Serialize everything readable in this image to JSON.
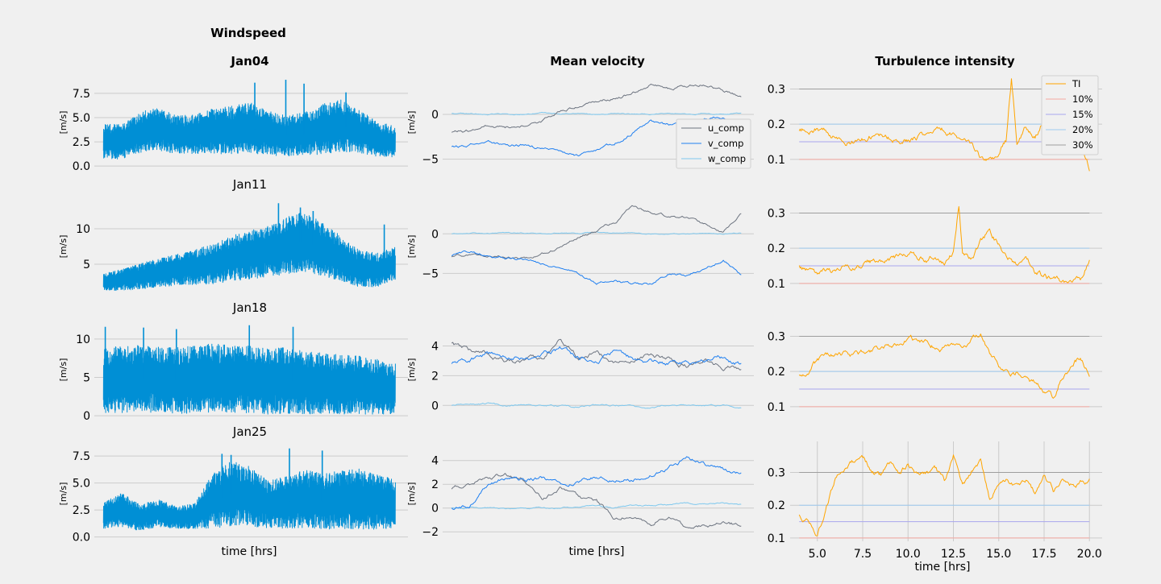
{
  "colors": {
    "windspeed": "#008fd5",
    "u_comp": "#6d7480",
    "v_comp": "#1f7ff0",
    "w_comp": "#7ec8ee",
    "TI": "#ffa500",
    "th10": "#f4a7a1",
    "th15": "#a8a6ee",
    "th20": "#9ecaf0",
    "th30": "#9e9e9e",
    "grid": "#cbcbcb",
    "background": "#f0f0f0"
  },
  "chart_data": {
    "suptitle": "Windspeed",
    "column_titles": [
      "Jan04",
      "Mean velocity",
      "Turbulence intensity"
    ],
    "row_titles": [
      "Jan04",
      "Jan11",
      "Jan18",
      "Jan25"
    ],
    "xlabel": "time [hrs]",
    "ylabel": "[m/s]",
    "xlim": [
      3.5,
      20.7
    ],
    "ti_xticks": [
      5.0,
      7.5,
      10.0,
      12.5,
      15.0,
      17.5,
      20.0
    ],
    "ti_xtick_labels": [
      "5.0",
      "7.5",
      "10.0",
      "12.5",
      "15.0",
      "17.5",
      "20.0"
    ],
    "legend_velocity": [
      "u_comp",
      "v_comp",
      "w_comp"
    ],
    "legend_ti": [
      "TI",
      "10%",
      "15%",
      "20%",
      "30%"
    ],
    "thresholds": [
      0.1,
      0.15,
      0.2,
      0.3
    ],
    "windspeed_panels": [
      {
        "type": "line",
        "title": "",
        "ylim": [
          -0.4,
          9.4
        ],
        "yticks": [
          0.0,
          2.5,
          5.0,
          7.5
        ],
        "ytick_labels": [
          "0.0",
          "2.5",
          "5.0",
          "7.5"
        ],
        "profile_x": [
          4,
          5,
          6,
          7,
          8,
          9,
          10,
          11,
          12,
          13,
          14,
          15,
          16,
          17,
          18,
          19,
          20
        ],
        "mean": [
          2.6,
          2.5,
          3.5,
          3.8,
          3.2,
          3.3,
          3.6,
          3.7,
          4.0,
          3.4,
          3.1,
          3.3,
          3.8,
          4.2,
          3.6,
          2.8,
          2.5
        ],
        "amp": [
          1.8,
          1.8,
          2.1,
          2.2,
          2.0,
          2.0,
          2.3,
          2.5,
          2.6,
          2.3,
          2.1,
          2.2,
          2.6,
          2.7,
          2.2,
          1.8,
          1.6
        ],
        "spikes": [
          [
            12.3,
            8.6
          ],
          [
            14.0,
            8.9
          ],
          [
            15.0,
            8.5
          ],
          [
            17.3,
            7.6
          ]
        ]
      },
      {
        "type": "line",
        "title": "Jan11",
        "ylim": [
          0.8,
          14.2
        ],
        "yticks": [
          5,
          10
        ],
        "ytick_labels": [
          "5",
          "10"
        ],
        "profile_x": [
          4,
          5,
          6,
          7,
          8,
          9,
          10,
          11,
          12,
          13,
          14,
          15,
          16,
          17,
          18,
          19,
          20
        ],
        "mean": [
          2.5,
          2.8,
          3.3,
          3.8,
          4.2,
          4.6,
          5.0,
          5.8,
          6.3,
          6.8,
          7.6,
          8.2,
          7.2,
          5.8,
          4.4,
          4.2,
          5.0
        ],
        "amp": [
          1.2,
          1.5,
          1.8,
          2.0,
          2.2,
          2.5,
          2.8,
          3.2,
          3.4,
          3.6,
          4.0,
          4.2,
          3.8,
          3.2,
          2.6,
          2.4,
          2.4
        ],
        "spikes": [
          [
            13.6,
            13.6
          ],
          [
            14.8,
            13.0
          ],
          [
            15.5,
            12.5
          ],
          [
            19.4,
            10.6
          ]
        ]
      },
      {
        "type": "line",
        "title": "Jan18",
        "ylim": [
          -0.2,
          12.2
        ],
        "yticks": [
          0,
          5,
          10
        ],
        "ytick_labels": [
          "0",
          "5",
          "10"
        ],
        "profile_x": [
          4,
          5,
          6,
          7,
          8,
          9,
          10,
          11,
          12,
          13,
          14,
          15,
          16,
          17,
          18,
          19,
          20
        ],
        "mean": [
          4.5,
          4.8,
          4.8,
          4.7,
          4.6,
          4.7,
          4.9,
          4.8,
          4.7,
          4.5,
          4.6,
          4.3,
          4.2,
          4.1,
          4.0,
          3.8,
          3.5
        ],
        "amp": [
          4.2,
          4.4,
          4.4,
          4.3,
          4.3,
          4.4,
          4.5,
          4.4,
          4.4,
          4.3,
          4.3,
          4.1,
          4.0,
          3.9,
          3.8,
          3.6,
          3.3
        ],
        "spikes": [
          [
            4.1,
            11.6
          ],
          [
            6.2,
            11.5
          ],
          [
            12.0,
            11.8
          ],
          [
            14.4,
            11.6
          ],
          [
            8.0,
            11.3
          ]
        ]
      },
      {
        "type": "line",
        "title": "Jan25",
        "ylim": [
          -0.4,
          8.4
        ],
        "yticks": [
          0.0,
          2.5,
          5.0,
          7.5
        ],
        "ytick_labels": [
          "0.0",
          "2.5",
          "5.0",
          "7.5"
        ],
        "profile_x": [
          4,
          5,
          6,
          7,
          8,
          9,
          10,
          11,
          12,
          13,
          14,
          15,
          16,
          17,
          18,
          19,
          20
        ],
        "mean": [
          2.0,
          2.5,
          1.8,
          2.2,
          1.8,
          1.9,
          3.4,
          4.0,
          3.8,
          3.0,
          3.2,
          3.5,
          3.3,
          3.4,
          3.5,
          3.3,
          3.0
        ],
        "amp": [
          1.2,
          1.6,
          1.2,
          1.3,
          1.0,
          1.2,
          2.6,
          3.0,
          2.8,
          2.2,
          2.4,
          2.7,
          2.6,
          2.7,
          2.8,
          2.6,
          2.3
        ],
        "spikes": [
          [
            10.5,
            7.7
          ],
          [
            11.0,
            7.6
          ],
          [
            14.2,
            8.2
          ],
          [
            16.0,
            8.0
          ]
        ]
      }
    ],
    "velocity_panels": [
      {
        "type": "line",
        "ylim": [
          -6.2,
          4.4
        ],
        "yticks": [
          -5,
          0
        ],
        "ytick_labels": [
          "−5",
          "0"
        ],
        "x": [
          4,
          5,
          6,
          7,
          8,
          9,
          10,
          11,
          12,
          13,
          14,
          15,
          16,
          17,
          18,
          19,
          20
        ],
        "u": [
          -2.0,
          -1.8,
          -1.2,
          -1.4,
          -1.2,
          -0.8,
          0.4,
          1.1,
          1.4,
          1.8,
          2.3,
          3.4,
          2.9,
          3.2,
          3.4,
          2.6,
          2.0
        ],
        "v": [
          -3.6,
          -3.5,
          -3.0,
          -3.6,
          -3.4,
          -3.8,
          -4.2,
          -4.6,
          -4.0,
          -3.2,
          -2.0,
          -0.7,
          -1.2,
          -1.0,
          -0.4,
          -0.2,
          -1.6
        ],
        "w": [
          0.1,
          0.1,
          0.0,
          0.1,
          0.0,
          0.1,
          0.0,
          0.1,
          0.0,
          0.1,
          0.0,
          0.0,
          0.1,
          0.0,
          0.1,
          0.0,
          0.1
        ]
      },
      {
        "type": "line",
        "ylim": [
          -7.6,
          4.4
        ],
        "yticks": [
          -5,
          0
        ],
        "ytick_labels": [
          "−5",
          "0"
        ],
        "x": [
          4,
          5,
          6,
          7,
          8,
          9,
          10,
          11,
          12,
          13,
          14,
          15,
          16,
          17,
          18,
          19,
          20
        ],
        "u": [
          -2.9,
          -2.7,
          -2.8,
          -3.0,
          -3.1,
          -2.5,
          -1.8,
          -0.4,
          0.4,
          1.4,
          3.4,
          2.6,
          2.2,
          2.0,
          1.2,
          0.3,
          2.4
        ],
        "v": [
          -2.8,
          -2.2,
          -2.8,
          -3.2,
          -3.2,
          -3.8,
          -4.2,
          -5.0,
          -6.2,
          -5.8,
          -6.4,
          -6.3,
          -5.0,
          -5.2,
          -4.4,
          -3.2,
          -5.2
        ],
        "w": [
          0.0,
          0.1,
          0.0,
          0.1,
          0.1,
          0.0,
          0.1,
          0.0,
          0.2,
          0.1,
          0.1,
          0.0,
          0.1,
          0.0,
          0.1,
          0.0,
          0.1
        ]
      },
      {
        "type": "line",
        "ylim": [
          -0.8,
          5.6
        ],
        "yticks": [
          0,
          2,
          4
        ],
        "ytick_labels": [
          "0",
          "2",
          "4"
        ],
        "x": [
          4,
          5,
          6,
          7,
          8,
          9,
          10,
          11,
          12,
          13,
          14,
          15,
          16,
          17,
          18,
          19,
          20
        ],
        "u": [
          4.2,
          3.6,
          3.5,
          3.0,
          2.8,
          3.2,
          4.5,
          3.2,
          3.6,
          2.8,
          3.0,
          3.4,
          3.2,
          2.6,
          3.0,
          2.6,
          2.6
        ],
        "v": [
          2.8,
          3.0,
          3.4,
          3.3,
          3.2,
          3.4,
          3.8,
          3.2,
          3.0,
          3.6,
          3.2,
          3.0,
          2.8,
          2.8,
          3.0,
          3.2,
          2.8
        ],
        "w": [
          0.0,
          0.0,
          0.1,
          -0.1,
          0.0,
          0.0,
          0.0,
          -0.1,
          0.0,
          0.0,
          0.0,
          -0.1,
          0.0,
          0.0,
          0.0,
          0.0,
          -0.1
        ]
      },
      {
        "type": "line",
        "ylim": [
          -2.8,
          5.2
        ],
        "yticks": [
          -2,
          0,
          2,
          4
        ],
        "ytick_labels": [
          "−2",
          "0",
          "2",
          "4"
        ],
        "x": [
          4,
          5,
          6,
          7,
          8,
          9,
          10,
          11,
          12,
          13,
          14,
          15,
          16,
          17,
          18,
          19,
          20
        ],
        "u": [
          1.6,
          2.0,
          2.6,
          2.8,
          2.4,
          0.8,
          1.8,
          1.0,
          0.5,
          -0.8,
          -0.6,
          -1.5,
          -0.5,
          -1.8,
          -1.6,
          -1.2,
          -1.5
        ],
        "v": [
          0.0,
          0.2,
          2.0,
          2.6,
          2.4,
          2.6,
          2.0,
          2.2,
          2.6,
          2.2,
          2.4,
          2.8,
          3.4,
          4.2,
          3.6,
          3.2,
          2.8
        ],
        "w": [
          0.0,
          0.0,
          0.0,
          -0.1,
          -0.1,
          0.0,
          0.0,
          0.1,
          0.2,
          0.0,
          0.2,
          0.2,
          0.3,
          0.4,
          0.3,
          0.4,
          0.3
        ]
      }
    ],
    "ti_panels": [
      {
        "type": "line",
        "ylim": [
          0.07,
          0.34
        ],
        "yticks": [
          0.1,
          0.2,
          0.3
        ],
        "ytick_labels": [
          "0.1",
          "0.2",
          "0.3"
        ],
        "x": [
          4.0,
          5.0,
          6.0,
          7.0,
          8.0,
          9.0,
          10.0,
          11.0,
          12.0,
          13.0,
          13.5,
          14.0,
          14.5,
          15.0,
          15.4,
          15.7,
          16.0,
          16.5,
          17.0,
          17.5,
          18.0,
          18.5,
          19.0,
          19.5,
          20.0
        ],
        "y": [
          0.18,
          0.19,
          0.16,
          0.15,
          0.17,
          0.16,
          0.16,
          0.17,
          0.18,
          0.16,
          0.13,
          0.1,
          0.09,
          0.12,
          0.15,
          0.33,
          0.14,
          0.19,
          0.17,
          0.21,
          0.26,
          0.18,
          0.21,
          0.14,
          0.08
        ]
      },
      {
        "type": "line",
        "ylim": [
          0.07,
          0.34
        ],
        "yticks": [
          0.1,
          0.2,
          0.3
        ],
        "ytick_labels": [
          "0.1",
          "0.2",
          "0.3"
        ],
        "x": [
          4.0,
          5.0,
          6.0,
          7.0,
          8.0,
          9.0,
          10.0,
          11.0,
          11.5,
          12.0,
          12.5,
          12.8,
          13.0,
          13.5,
          14.0,
          14.5,
          15.0,
          15.5,
          16.0,
          16.5,
          17.0,
          17.5,
          18.0,
          18.5,
          19.0,
          19.5,
          20.0
        ],
        "y": [
          0.15,
          0.13,
          0.14,
          0.15,
          0.16,
          0.17,
          0.19,
          0.17,
          0.18,
          0.15,
          0.19,
          0.32,
          0.18,
          0.16,
          0.22,
          0.25,
          0.21,
          0.17,
          0.15,
          0.16,
          0.13,
          0.12,
          0.11,
          0.1,
          0.09,
          0.1,
          0.17
        ]
      },
      {
        "type": "line",
        "ylim": [
          0.07,
          0.34
        ],
        "yticks": [
          0.1,
          0.2,
          0.3
        ],
        "ytick_labels": [
          "0.1",
          "0.2",
          "0.3"
        ],
        "x": [
          4.0,
          5.0,
          6.0,
          7.0,
          8.0,
          9.0,
          10.0,
          11.0,
          12.0,
          13.0,
          13.5,
          14.0,
          14.5,
          15.0,
          15.5,
          16.0,
          16.5,
          17.0,
          17.5,
          18.0,
          18.5,
          19.0,
          19.5,
          20.0
        ],
        "y": [
          0.19,
          0.23,
          0.24,
          0.25,
          0.26,
          0.28,
          0.3,
          0.28,
          0.27,
          0.26,
          0.28,
          0.31,
          0.26,
          0.22,
          0.21,
          0.2,
          0.19,
          0.17,
          0.15,
          0.13,
          0.19,
          0.21,
          0.24,
          0.19
        ]
      },
      {
        "type": "line",
        "ylim": [
          0.09,
          0.38
        ],
        "yticks": [
          0.1,
          0.2,
          0.3
        ],
        "ytick_labels": [
          "0.1",
          "0.2",
          "0.3"
        ],
        "x": [
          4.0,
          4.5,
          5.0,
          5.5,
          6.0,
          6.5,
          7.0,
          7.5,
          8.0,
          8.5,
          9.0,
          9.5,
          10.0,
          10.5,
          11.0,
          11.5,
          12.0,
          12.5,
          13.0,
          13.5,
          14.0,
          14.5,
          15.0,
          15.5,
          16.0,
          16.5,
          17.0,
          17.5,
          18.0,
          18.5,
          19.0,
          19.5,
          20.0
        ],
        "y": [
          0.17,
          0.15,
          0.12,
          0.2,
          0.28,
          0.31,
          0.33,
          0.34,
          0.31,
          0.29,
          0.33,
          0.3,
          0.32,
          0.29,
          0.3,
          0.31,
          0.27,
          0.35,
          0.26,
          0.3,
          0.33,
          0.22,
          0.27,
          0.28,
          0.26,
          0.27,
          0.23,
          0.29,
          0.24,
          0.28,
          0.26,
          0.27,
          0.28
        ]
      }
    ]
  }
}
